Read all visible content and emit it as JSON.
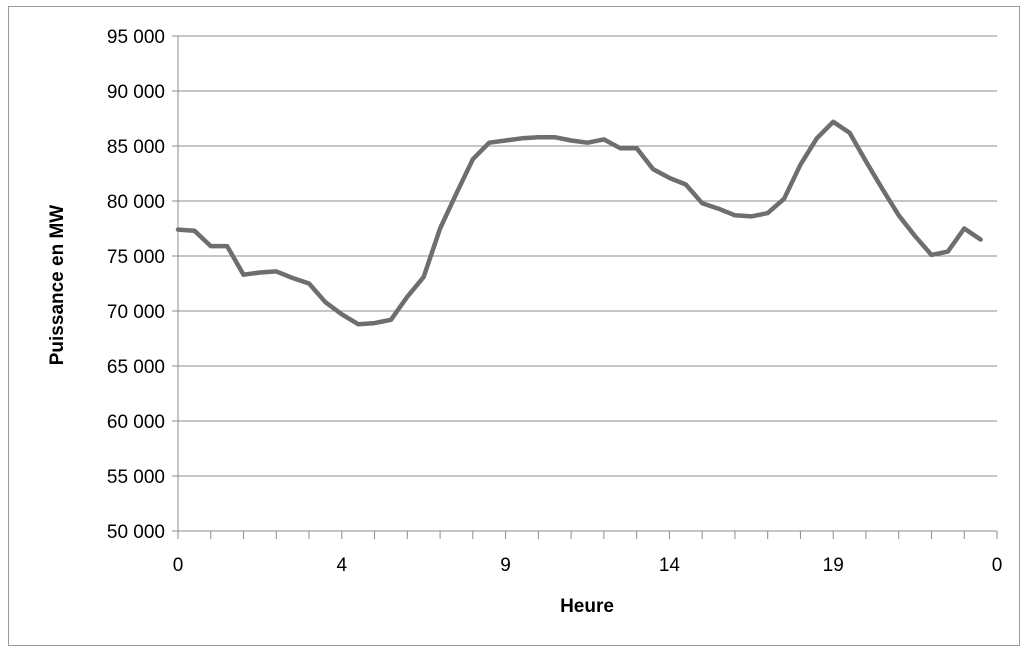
{
  "chart_data": {
    "type": "line",
    "title": "",
    "xlabel": "Heure",
    "ylabel": "Puissance en MW",
    "ylim": [
      50000,
      95000
    ],
    "yticks": [
      50000,
      55000,
      60000,
      65000,
      70000,
      75000,
      80000,
      85000,
      90000,
      95000
    ],
    "ytick_labels": [
      "50 000",
      "55 000",
      "60 000",
      "65 000",
      "70 000",
      "75 000",
      "80 000",
      "85 000",
      "90 000",
      "95 000"
    ],
    "x_categories_count": 50,
    "xtick_labels": [
      {
        "index": 0,
        "label": "0"
      },
      {
        "index": 10,
        "label": "4"
      },
      {
        "index": 20,
        "label": "9"
      },
      {
        "index": 30,
        "label": "14"
      },
      {
        "index": 40,
        "label": "19"
      },
      {
        "index": 50,
        "label": "0"
      }
    ],
    "grid": "horizontal",
    "line_color": "#6e6e6e",
    "series": [
      {
        "values": [
          77400,
          77300,
          75900,
          75900,
          73300,
          73500,
          73600,
          73000,
          72500,
          70800,
          69700,
          68800,
          68900,
          69200,
          71300,
          73100,
          77500,
          80700,
          83800,
          85300,
          85500,
          85700,
          85800,
          85800,
          85500,
          85300,
          85600,
          84800,
          84800,
          82900,
          82100,
          81500,
          79800,
          79300,
          78700,
          78600,
          78900,
          80200,
          83300,
          85700,
          87200,
          86200,
          83600,
          81100,
          78700,
          76800,
          75100,
          75400,
          77500,
          76500
        ]
      }
    ]
  }
}
